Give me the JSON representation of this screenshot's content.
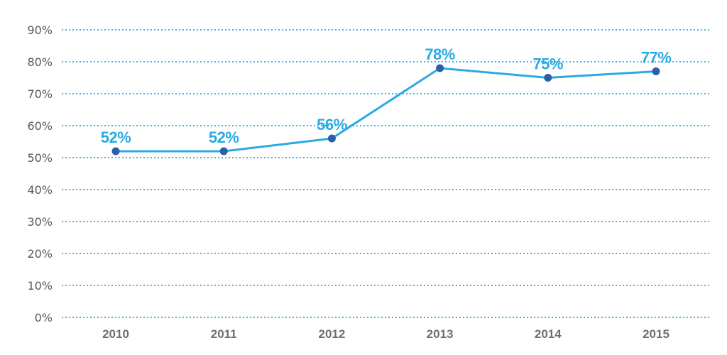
{
  "chart_data": {
    "type": "line",
    "title": "",
    "xlabel": "",
    "ylabel": "",
    "x": [
      "2010",
      "2011",
      "2012",
      "2013",
      "2014",
      "2015"
    ],
    "series": [
      {
        "name": "share-percent",
        "values": [
          52,
          52,
          56,
          78,
          75,
          77
        ]
      }
    ],
    "point_labels": [
      "52%",
      "52%",
      "56%",
      "78%",
      "75%",
      "77%"
    ],
    "y_ticks": {
      "values": [
        0,
        10,
        20,
        30,
        40,
        50,
        60,
        70,
        80,
        90
      ],
      "labels": [
        "0%",
        "10%",
        "20%",
        "30%",
        "40%",
        "50%",
        "60%",
        "70%",
        "80%",
        "90%"
      ]
    },
    "ylim": [
      0,
      90
    ],
    "grid": "horizontal-dotted",
    "legend_position": "none",
    "colors": {
      "line": "#29abe2",
      "marker": "#2b5fa8",
      "point_label": "#29abe2",
      "gridline": "#3fb2e6",
      "y_tick_text": "#58595b",
      "x_tick_text": "#6d6e71",
      "background": "#ffffff"
    }
  }
}
